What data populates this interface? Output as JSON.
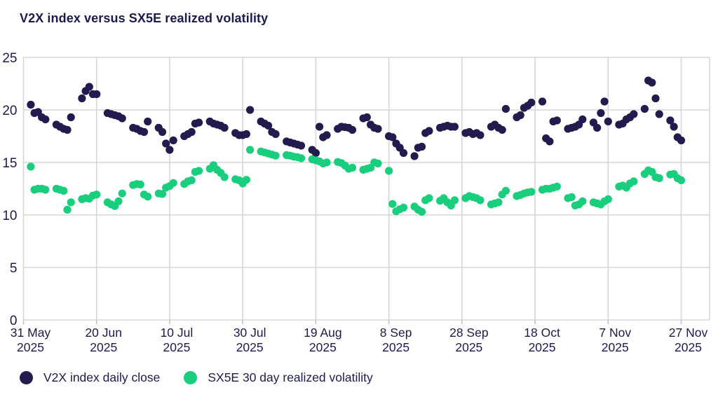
{
  "title": "V2X index versus SX5E realized volatility",
  "colors": {
    "v2x": "#231b4d",
    "sx5e": "#19ce7c",
    "grid": "#d7d7d7",
    "tick": "#c3c3c3",
    "text": "#1f1a4e",
    "background": "#ffffff"
  },
  "chart_data": {
    "type": "scatter",
    "title": "V2X index versus SX5E realized volatility",
    "xlabel": "",
    "ylabel": "",
    "grid": true,
    "legend_position": "bottom",
    "marker_radius": 5.6,
    "x_axis": {
      "start_date": "2025-05-31",
      "end_date": "2025-11-27",
      "tick_dates": [
        "2025-05-31",
        "2025-06-20",
        "2025-07-10",
        "2025-07-30",
        "2025-08-19",
        "2025-09-08",
        "2025-09-28",
        "2025-10-18",
        "2025-11-07",
        "2025-11-27"
      ],
      "tick_labels": [
        {
          "line1": "31 May",
          "line2": "2025"
        },
        {
          "line1": "20 Jun",
          "line2": "2025"
        },
        {
          "line1": "10 Jul",
          "line2": "2025"
        },
        {
          "line1": "30 Jul",
          "line2": "2025"
        },
        {
          "line1": "19 Aug",
          "line2": "2025"
        },
        {
          "line1": "8 Sep",
          "line2": "2025"
        },
        {
          "line1": "28 Sep",
          "line2": "2025"
        },
        {
          "line1": "18 Oct",
          "line2": "2025"
        },
        {
          "line1": "7 Nov",
          "line2": "2025"
        },
        {
          "line1": "27 Nov",
          "line2": "2025"
        }
      ]
    },
    "y_axis": {
      "min": 0,
      "max": 25,
      "ticks": [
        0,
        5,
        10,
        15,
        20,
        25
      ]
    },
    "dates": [
      "2025-06-02",
      "2025-06-03",
      "2025-06-04",
      "2025-06-05",
      "2025-06-06",
      "2025-06-09",
      "2025-06-10",
      "2025-06-11",
      "2025-06-12",
      "2025-06-13",
      "2025-06-16",
      "2025-06-17",
      "2025-06-18",
      "2025-06-19",
      "2025-06-20",
      "2025-06-23",
      "2025-06-24",
      "2025-06-25",
      "2025-06-26",
      "2025-06-27",
      "2025-06-30",
      "2025-07-01",
      "2025-07-02",
      "2025-07-03",
      "2025-07-04",
      "2025-07-07",
      "2025-07-08",
      "2025-07-09",
      "2025-07-10",
      "2025-07-11",
      "2025-07-14",
      "2025-07-15",
      "2025-07-16",
      "2025-07-17",
      "2025-07-18",
      "2025-07-21",
      "2025-07-22",
      "2025-07-23",
      "2025-07-24",
      "2025-07-25",
      "2025-07-28",
      "2025-07-29",
      "2025-07-30",
      "2025-07-31",
      "2025-08-01",
      "2025-08-04",
      "2025-08-05",
      "2025-08-06",
      "2025-08-07",
      "2025-08-08",
      "2025-08-11",
      "2025-08-12",
      "2025-08-13",
      "2025-08-14",
      "2025-08-15",
      "2025-08-18",
      "2025-08-19",
      "2025-08-20",
      "2025-08-21",
      "2025-08-22",
      "2025-08-25",
      "2025-08-26",
      "2025-08-27",
      "2025-08-28",
      "2025-08-29",
      "2025-09-01",
      "2025-09-02",
      "2025-09-03",
      "2025-09-04",
      "2025-09-05",
      "2025-09-08",
      "2025-09-09",
      "2025-09-10",
      "2025-09-11",
      "2025-09-12",
      "2025-09-15",
      "2025-09-16",
      "2025-09-17",
      "2025-09-18",
      "2025-09-19",
      "2025-09-22",
      "2025-09-23",
      "2025-09-24",
      "2025-09-25",
      "2025-09-26",
      "2025-09-29",
      "2025-09-30",
      "2025-10-01",
      "2025-10-02",
      "2025-10-03",
      "2025-10-06",
      "2025-10-07",
      "2025-10-08",
      "2025-10-09",
      "2025-10-10",
      "2025-10-13",
      "2025-10-14",
      "2025-10-15",
      "2025-10-16",
      "2025-10-17",
      "2025-10-20",
      "2025-10-21",
      "2025-10-22",
      "2025-10-23",
      "2025-10-24",
      "2025-10-27",
      "2025-10-28",
      "2025-10-29",
      "2025-10-30",
      "2025-10-31",
      "2025-11-03",
      "2025-11-04",
      "2025-11-05",
      "2025-11-06",
      "2025-11-07",
      "2025-11-10",
      "2025-11-11",
      "2025-11-12",
      "2025-11-13",
      "2025-11-14",
      "2025-11-17",
      "2025-11-18",
      "2025-11-19",
      "2025-11-20",
      "2025-11-21",
      "2025-11-24",
      "2025-11-25",
      "2025-11-26",
      "2025-11-27"
    ],
    "series": [
      {
        "name": "V2X index daily close",
        "color": "#231b4d",
        "values": [
          20.5,
          19.7,
          19.8,
          19.3,
          19.1,
          18.6,
          18.4,
          18.2,
          18.1,
          19.3,
          21.1,
          21.8,
          22.2,
          21.5,
          21.5,
          19.7,
          19.6,
          19.5,
          19.4,
          19.2,
          18.3,
          18.2,
          18.0,
          17.9,
          18.9,
          18.3,
          17.9,
          16.8,
          16.2,
          17.1,
          17.5,
          17.7,
          17.9,
          18.7,
          18.8,
          18.9,
          18.7,
          18.6,
          18.5,
          18.3,
          17.8,
          17.6,
          17.6,
          17.7,
          20.0,
          18.9,
          18.7,
          18.5,
          17.9,
          17.7,
          17.0,
          16.9,
          16.8,
          16.7,
          16.6,
          16.2,
          15.9,
          18.4,
          17.4,
          17.6,
          18.2,
          18.4,
          18.35,
          18.3,
          18.1,
          19.2,
          19.3,
          18.6,
          18.3,
          18.2,
          17.5,
          17.4,
          16.8,
          16.4,
          15.9,
          15.6,
          16.4,
          16.5,
          17.8,
          18.0,
          18.3,
          18.4,
          18.5,
          18.4,
          18.4,
          17.8,
          17.9,
          17.7,
          17.8,
          17.6,
          18.4,
          18.6,
          18.3,
          18.1,
          20.1,
          19.3,
          19.5,
          20.2,
          20.4,
          20.7,
          20.8,
          17.3,
          17.0,
          18.9,
          19.0,
          18.2,
          18.3,
          18.4,
          18.6,
          19.1,
          18.8,
          18.3,
          19.7,
          20.8,
          18.9,
          18.6,
          18.7,
          19.1,
          19.3,
          19.6,
          20.1,
          22.8,
          22.6,
          21.1,
          19.6,
          19.0,
          18.4,
          17.4,
          17.1
        ]
      },
      {
        "name": "SX5E 30 day realized volatility",
        "color": "#19ce7c",
        "values": [
          14.6,
          12.4,
          12.5,
          12.5,
          12.4,
          12.5,
          12.4,
          12.3,
          10.5,
          11.2,
          11.5,
          11.6,
          11.55,
          11.85,
          11.95,
          11.2,
          11.0,
          10.85,
          11.3,
          12.05,
          12.85,
          12.95,
          12.9,
          11.95,
          11.75,
          12.05,
          12.0,
          12.6,
          12.75,
          13.05,
          12.95,
          13.2,
          13.3,
          14.1,
          14.2,
          14.4,
          14.75,
          14.3,
          14.0,
          13.6,
          13.4,
          13.3,
          13.0,
          13.35,
          16.2,
          16.05,
          15.95,
          15.85,
          15.75,
          15.65,
          15.7,
          15.65,
          15.55,
          15.5,
          15.4,
          15.3,
          15.2,
          15.1,
          14.9,
          15.0,
          15.05,
          14.95,
          14.7,
          14.4,
          14.5,
          14.3,
          14.4,
          14.5,
          15.0,
          14.9,
          14.2,
          11.05,
          10.35,
          10.55,
          10.7,
          10.8,
          10.5,
          10.3,
          11.4,
          11.6,
          11.35,
          11.6,
          11.2,
          10.9,
          11.4,
          11.6,
          11.8,
          11.7,
          11.6,
          11.4,
          11.0,
          11.1,
          11.2,
          11.95,
          12.3,
          11.8,
          11.9,
          12.05,
          12.15,
          12.2,
          12.4,
          12.5,
          12.5,
          12.6,
          12.7,
          11.6,
          11.7,
          10.9,
          11.0,
          11.3,
          11.2,
          11.1,
          11.0,
          11.3,
          11.5,
          12.7,
          12.8,
          12.6,
          13.0,
          13.2,
          13.9,
          14.25,
          14.1,
          13.6,
          13.5,
          13.85,
          13.9,
          13.5,
          13.3
        ]
      }
    ]
  },
  "legend": {
    "items": [
      {
        "label": "V2X index daily close"
      },
      {
        "label": "SX5E 30 day realized volatility"
      }
    ]
  }
}
